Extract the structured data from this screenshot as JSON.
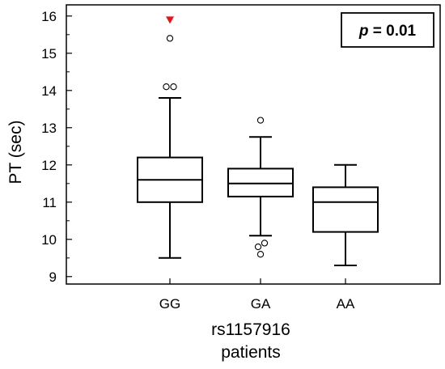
{
  "chart_data": {
    "type": "boxplot",
    "title": "",
    "ylabel": "PT (sec)",
    "xlabel_lines": [
      "rs1157916",
      "patients"
    ],
    "ylim": [
      8.8,
      16.3
    ],
    "yticks": [
      "9",
      "10",
      "11",
      "12",
      "13",
      "14",
      "15",
      "16"
    ],
    "categories": [
      "GG",
      "GA",
      "AA"
    ],
    "annotation": {
      "p_label": "p",
      "p_text": " = 0.01"
    },
    "colors": {
      "box": "#000000",
      "outlier": "#000000",
      "marker": "#e8141b"
    },
    "boxes": [
      {
        "category": "GG",
        "whisker_low": 9.5,
        "q1": 11.0,
        "median": 11.6,
        "q3": 12.2,
        "whisker_high": 13.8,
        "outliers": [
          14.1,
          14.1,
          15.4
        ],
        "marker_high": 15.9
      },
      {
        "category": "GA",
        "whisker_low": 10.1,
        "q1": 11.15,
        "median": 11.5,
        "q3": 11.9,
        "whisker_high": 12.75,
        "outliers": [
          13.2,
          9.9,
          9.8,
          9.6
        ]
      },
      {
        "category": "AA",
        "whisker_low": 9.3,
        "q1": 10.2,
        "median": 11.0,
        "q3": 11.4,
        "whisker_high": 12.0,
        "outliers": []
      }
    ]
  }
}
